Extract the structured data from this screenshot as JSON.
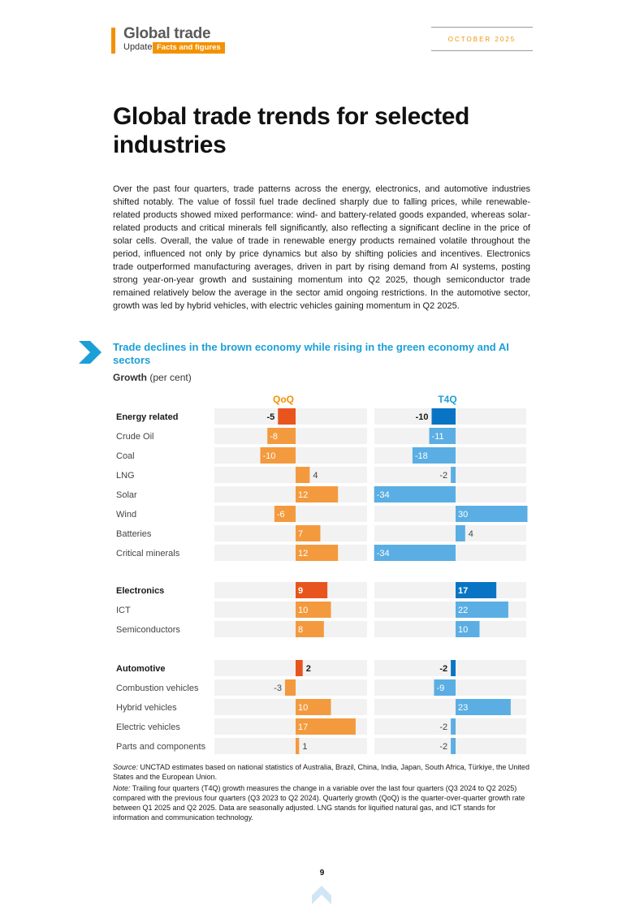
{
  "header": {
    "brand_title": "Global trade",
    "brand_sub": "Update",
    "brand_badge": "Facts and figures",
    "date": "OCTOBER 2025"
  },
  "page_title": "Global trade trends for selected industries",
  "intro": "Over the past four quarters, trade patterns across the energy, electronics, and automotive industries shifted notably. The value of fossil fuel trade declined sharply due to falling prices, while renewable-related products showed mixed performance: wind- and battery-related goods expanded, whereas solar-related products and critical minerals fell significantly, also reflecting a significant decline in the price of solar cells. Overall, the value of trade in renewable energy products remained volatile throughout the period, influenced not only by price dynamics but also by shifting policies and incentives. Electronics trade outperformed manufacturing averages, driven in part by rising demand from AI systems, posting strong year-on-year growth and sustaining momentum into Q2 2025, though semiconductor trade remained relatively below the average in the sector amid ongoing restrictions. In the automotive sector, growth was led by hybrid vehicles, with electric vehicles gaining momentum in Q2 2025.",
  "chart_heading": "Trade declines in the brown economy while rising in the green economy and AI sectors",
  "chart_data": {
    "type": "bar",
    "orientation": "horizontal",
    "title": "Trade declines in the brown economy while rising in the green economy and AI sectors",
    "subtitle_bold": "Growth",
    "subtitle_rest": "(per cent)",
    "panels": [
      "QoQ",
      "T4Q"
    ],
    "categories": [
      "Energy related",
      "Crude Oil",
      "Coal",
      "LNG",
      "Solar",
      "Wind",
      "Batteries",
      "Critical minerals",
      "Electronics",
      "ICT",
      "Semiconductors",
      "Automotive",
      "Combustion vehicles",
      "Hybrid vehicles",
      "Electric vehicles",
      "Parts and components"
    ],
    "group_totals": [
      "Energy related",
      "Electronics",
      "Automotive"
    ],
    "series": [
      {
        "name": "QoQ",
        "values": [
          -5,
          -8,
          -10,
          4,
          12,
          -6,
          7,
          12,
          9,
          10,
          8,
          2,
          -3,
          10,
          17,
          1
        ]
      },
      {
        "name": "T4Q",
        "values": [
          -10,
          -11,
          -18,
          -2,
          -34,
          30,
          4,
          -34,
          17,
          22,
          10,
          -2,
          -9,
          23,
          -2,
          -2
        ]
      }
    ],
    "colors": {
      "qoq_total": "#e8541e",
      "qoq": "#f39a3e",
      "t4q_total": "#0a74c4",
      "t4q": "#5aaee3",
      "row_bg": "#f2f2f2",
      "panel_label_qoq": "#f39200",
      "panel_label_t4q": "#1b9fd7"
    }
  },
  "source_label": "Source:",
  "source_text": "UNCTAD estimates based on national statistics of Australia, Brazil, China, India, Japan, South Africa, Türkiye, the United States and the European Union.",
  "note_label": "Note:",
  "note_text": "Trailing four quarters (T4Q) growth measures the change in a variable over the last four quarters (Q3 2024 to Q2 2025) compared with the previous four quarters (Q3 2023 to Q2 2024). Quarterly growth (QoQ) is the quarter-over-quarter growth rate between Q1 2025 and Q2 2025. Data are seasonally adjusted. LNG stands for liquified natural gas, and ICT stands for information and communication technology.",
  "page_number": "9",
  "icons": {
    "chevron": "chevron-right-icon",
    "nav": "arrow-up-icon"
  }
}
